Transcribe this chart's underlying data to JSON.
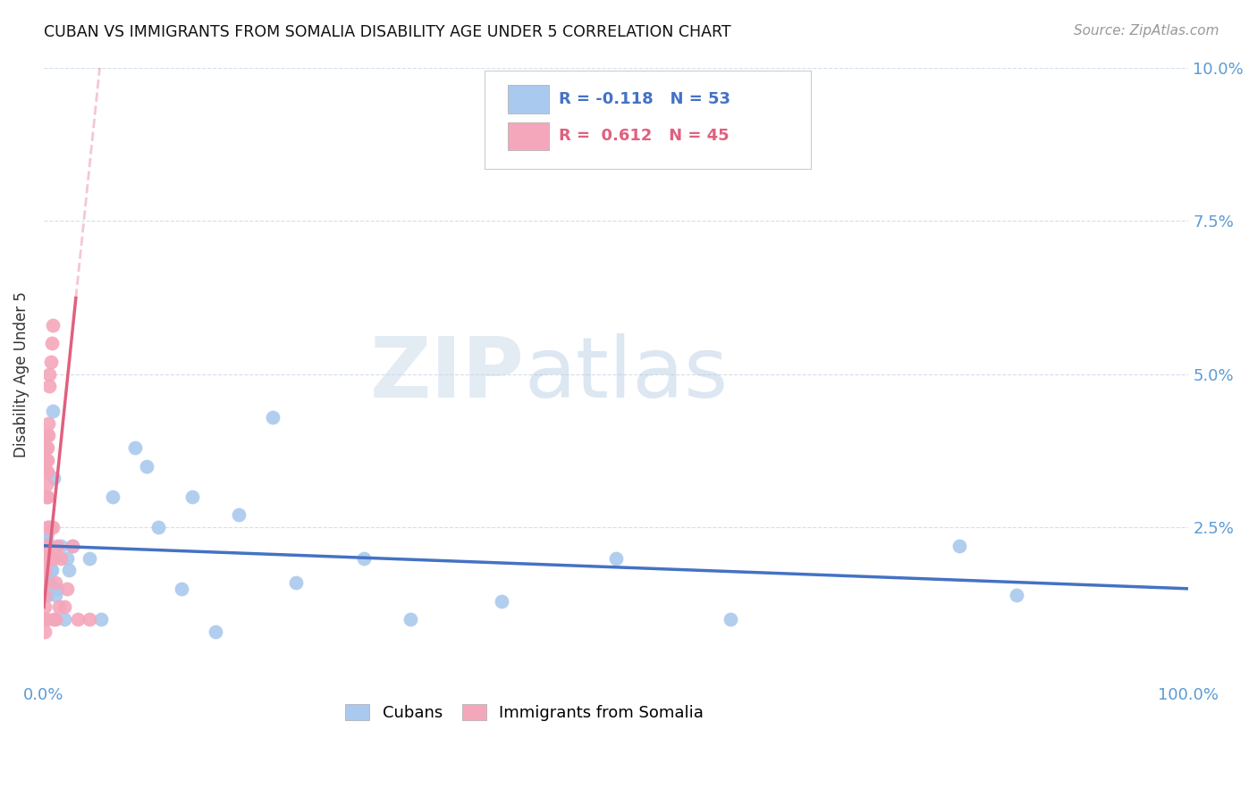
{
  "title": "CUBAN VS IMMIGRANTS FROM SOMALIA DISABILITY AGE UNDER 5 CORRELATION CHART",
  "source": "Source: ZipAtlas.com",
  "ylabel": "Disability Age Under 5",
  "xlim": [
    0,
    1.0
  ],
  "ylim": [
    0,
    0.1
  ],
  "xticks": [
    0.0,
    0.25,
    0.5,
    0.75,
    1.0
  ],
  "xtick_labels": [
    "0.0%",
    "",
    "",
    "",
    "100.0%"
  ],
  "yticks": [
    0.0,
    0.025,
    0.05,
    0.075,
    0.1
  ],
  "ytick_labels": [
    "",
    "2.5%",
    "5.0%",
    "7.5%",
    "10.0%"
  ],
  "legend_label1": "Cubans",
  "legend_label2": "Immigrants from Somalia",
  "R_cubans": -0.118,
  "N_cubans": 53,
  "R_somalia": 0.612,
  "N_somalia": 45,
  "color_cubans": "#aac9ee",
  "color_somalia": "#f4a7bb",
  "color_line_cubans": "#4472c4",
  "color_line_somalia": "#e0607e",
  "watermark_zip": "ZIP",
  "watermark_atlas": "atlas",
  "background_color": "#ffffff",
  "cubans_x": [
    0.001,
    0.001,
    0.001,
    0.001,
    0.002,
    0.002,
    0.002,
    0.002,
    0.002,
    0.003,
    0.003,
    0.003,
    0.003,
    0.003,
    0.003,
    0.004,
    0.004,
    0.004,
    0.005,
    0.005,
    0.005,
    0.006,
    0.006,
    0.007,
    0.007,
    0.008,
    0.009,
    0.01,
    0.012,
    0.015,
    0.018,
    0.02,
    0.022,
    0.025,
    0.04,
    0.05,
    0.06,
    0.08,
    0.09,
    0.1,
    0.12,
    0.13,
    0.15,
    0.17,
    0.2,
    0.22,
    0.28,
    0.32,
    0.4,
    0.5,
    0.6,
    0.8,
    0.85
  ],
  "cubans_y": [
    0.022,
    0.02,
    0.018,
    0.016,
    0.023,
    0.021,
    0.019,
    0.017,
    0.015,
    0.024,
    0.022,
    0.02,
    0.018,
    0.016,
    0.014,
    0.02,
    0.018,
    0.016,
    0.02,
    0.018,
    0.016,
    0.02,
    0.018,
    0.02,
    0.018,
    0.044,
    0.033,
    0.014,
    0.015,
    0.022,
    0.01,
    0.02,
    0.018,
    0.022,
    0.02,
    0.01,
    0.03,
    0.038,
    0.035,
    0.025,
    0.015,
    0.03,
    0.008,
    0.027,
    0.043,
    0.016,
    0.02,
    0.01,
    0.013,
    0.02,
    0.01,
    0.022,
    0.014
  ],
  "somalia_x": [
    0.001,
    0.001,
    0.001,
    0.001,
    0.001,
    0.001,
    0.001,
    0.001,
    0.002,
    0.002,
    0.002,
    0.002,
    0.002,
    0.002,
    0.003,
    0.003,
    0.003,
    0.003,
    0.003,
    0.003,
    0.004,
    0.004,
    0.004,
    0.004,
    0.005,
    0.005,
    0.005,
    0.006,
    0.006,
    0.007,
    0.007,
    0.008,
    0.008,
    0.009,
    0.009,
    0.01,
    0.01,
    0.012,
    0.013,
    0.015,
    0.018,
    0.02,
    0.025,
    0.03,
    0.04
  ],
  "somalia_y": [
    0.022,
    0.02,
    0.018,
    0.016,
    0.014,
    0.012,
    0.01,
    0.008,
    0.038,
    0.036,
    0.034,
    0.032,
    0.03,
    0.01,
    0.04,
    0.038,
    0.036,
    0.034,
    0.03,
    0.025,
    0.042,
    0.04,
    0.025,
    0.022,
    0.05,
    0.048,
    0.02,
    0.052,
    0.025,
    0.055,
    0.02,
    0.058,
    0.025,
    0.01,
    0.02,
    0.01,
    0.016,
    0.022,
    0.012,
    0.02,
    0.012,
    0.015,
    0.022,
    0.01,
    0.01
  ]
}
